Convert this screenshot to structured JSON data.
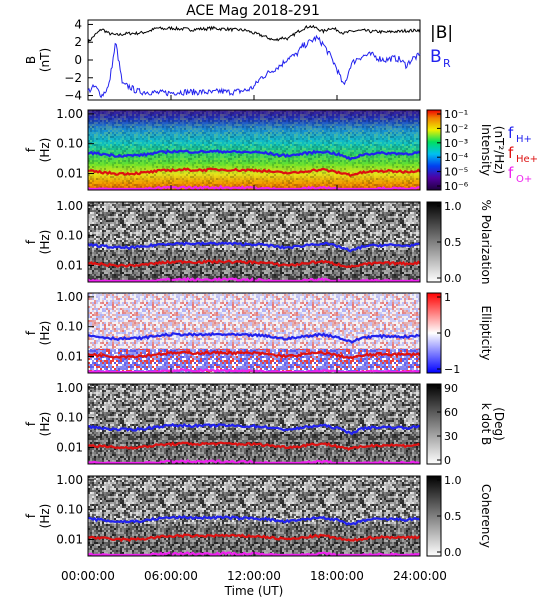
{
  "title": "ACE Mag 2018-291",
  "x_axis": {
    "label": "Time (UT)",
    "ticks": [
      "00:00:00",
      "06:00:00",
      "12:00:00",
      "18:00:00",
      "24:00:00"
    ],
    "range_hours": [
      0,
      24
    ]
  },
  "freq_ticks": [
    "1.00",
    "0.10",
    "0.01"
  ],
  "line_legend": [
    {
      "label": "f",
      "sub": "H+",
      "color": "#2222ee"
    },
    {
      "label": "f",
      "sub": "He+",
      "color": "#dd1111"
    },
    {
      "label": "f",
      "sub": "O+",
      "color": "#ee22ee"
    }
  ],
  "chart_data": [
    {
      "type": "line",
      "ylabel": [
        "B",
        "(nT)"
      ],
      "ylim": [
        -4.5,
        4.5
      ],
      "yticks": [
        -4,
        -2,
        0,
        2,
        4
      ],
      "legend": [
        {
          "text": "|B|",
          "color": "#000000"
        },
        {
          "text": "B",
          "sub": "R",
          "color": "#2222ee"
        }
      ],
      "series": [
        {
          "name": "|B|",
          "color": "#000000",
          "x": [
            0,
            0.5,
            1,
            1.5,
            2,
            2.5,
            3,
            3.5,
            4,
            4.5,
            5,
            5.5,
            6,
            6.5,
            7,
            7.5,
            8,
            8.5,
            9,
            9.5,
            10,
            10.5,
            11,
            11.5,
            12,
            12.5,
            13,
            13.5,
            14,
            14.5,
            15,
            15.5,
            16,
            16.5,
            17,
            17.5,
            18,
            18.5,
            19,
            19.5,
            20,
            20.5,
            21,
            21.5,
            22,
            22.5,
            23,
            23.5,
            24
          ],
          "y": [
            2.0,
            2.8,
            3.5,
            3.0,
            2.8,
            2.9,
            3.0,
            3.0,
            3.1,
            3.3,
            3.6,
            3.5,
            3.6,
            3.5,
            3.5,
            3.4,
            3.5,
            3.5,
            3.6,
            3.5,
            3.5,
            3.4,
            3.4,
            3.3,
            3.0,
            2.8,
            2.5,
            2.2,
            2.5,
            2.4,
            3.0,
            3.5,
            3.8,
            3.6,
            3.2,
            3.6,
            3.4,
            3.0,
            3.2,
            3.3,
            3.3,
            3.2,
            3.2,
            3.1,
            3.2,
            3.2,
            3.3,
            3.3,
            3.4
          ]
        },
        {
          "name": "B_R",
          "color": "#2222ee",
          "x": [
            0,
            0.5,
            1,
            1.5,
            2,
            2.5,
            3,
            3.5,
            4,
            4.5,
            5,
            5.5,
            6,
            6.5,
            7,
            7.5,
            8,
            8.5,
            9,
            9.5,
            10,
            10.5,
            11,
            11.5,
            12,
            12.5,
            13,
            13.5,
            14,
            14.5,
            15,
            15.5,
            16,
            16.5,
            17,
            17.5,
            18,
            18.5,
            19,
            19.5,
            20,
            20.5,
            21,
            21.5,
            22,
            22.5,
            23,
            23.5,
            24
          ],
          "y": [
            -3.5,
            -3.0,
            -4.0,
            -3.0,
            2.0,
            -2.8,
            -3.0,
            -3.5,
            -3.6,
            -3.6,
            -3.7,
            -3.7,
            -3.7,
            -3.6,
            -3.6,
            -3.6,
            -3.6,
            -3.6,
            -3.7,
            -3.5,
            -3.6,
            -3.6,
            -3.5,
            -3.4,
            -3.0,
            -2.0,
            -1.5,
            -1.0,
            -0.5,
            0.3,
            0.5,
            1.5,
            2.0,
            2.5,
            1.8,
            0.5,
            -1.0,
            -3.0,
            -0.5,
            0.2,
            0.5,
            0.6,
            0.2,
            0.0,
            0.2,
            0.1,
            -0.6,
            0.2,
            0.5
          ]
        }
      ]
    },
    {
      "type": "heatmap",
      "ylabel": [
        "f",
        "(Hz)"
      ],
      "colorbar": {
        "title_lines": [
          "Intensity",
          "(nT²/Hz)"
        ],
        "ticks": [
          "10⁻¹",
          "10⁻²",
          "10⁻³",
          "10⁻⁴",
          "10⁻⁵",
          "10⁻⁶"
        ]
      }
    },
    {
      "type": "heatmap",
      "ylabel": [
        "f",
        "(Hz)"
      ],
      "colorbar": {
        "title_lines": [
          "% Polarization"
        ],
        "ticks": [
          "1.0",
          "0.5",
          "0.0"
        ]
      }
    },
    {
      "type": "heatmap",
      "ylabel": [
        "f",
        "(Hz)"
      ],
      "colorbar": {
        "title_lines": [
          "Ellipticity"
        ],
        "ticks": [
          "1",
          "0",
          "−1"
        ]
      }
    },
    {
      "type": "heatmap",
      "ylabel": [
        "f",
        "(Hz)"
      ],
      "colorbar": {
        "title_lines": [
          "k dot B",
          "(Deg)"
        ],
        "ticks": [
          "90",
          "60",
          "30",
          "0"
        ]
      }
    },
    {
      "type": "heatmap",
      "ylabel": [
        "f",
        "(Hz)"
      ],
      "colorbar": {
        "title_lines": [
          "Coherency"
        ],
        "ticks": [
          "1.0",
          "0.5",
          "0.0"
        ]
      }
    }
  ],
  "gyrofrequency_lines": {
    "x": [
      0,
      1,
      2,
      3,
      4,
      5,
      6,
      7,
      8,
      9,
      10,
      11,
      12,
      13,
      14,
      15,
      16,
      17,
      18,
      19,
      20,
      21,
      22,
      23,
      24
    ],
    "fH": [
      0.05,
      0.045,
      0.04,
      0.04,
      0.042,
      0.05,
      0.055,
      0.055,
      0.053,
      0.055,
      0.055,
      0.052,
      0.052,
      0.048,
      0.04,
      0.042,
      0.05,
      0.055,
      0.045,
      0.03,
      0.045,
      0.048,
      0.048,
      0.046,
      0.05
    ],
    "fHe": [
      0.012,
      0.011,
      0.01,
      0.01,
      0.0105,
      0.012,
      0.013,
      0.0135,
      0.013,
      0.0135,
      0.0135,
      0.013,
      0.013,
      0.012,
      0.0105,
      0.0105,
      0.0125,
      0.0135,
      0.011,
      0.009,
      0.011,
      0.012,
      0.012,
      0.0115,
      0.0125
    ],
    "fO": [
      0.0032,
      0.003,
      0.0028,
      0.0028,
      0.0029,
      0.0032,
      0.0034,
      0.0034,
      0.0033,
      0.0034,
      0.0034,
      0.0033,
      0.0033,
      0.0031,
      0.0029,
      0.0029,
      0.0032,
      0.0034,
      0.003,
      0.0027,
      0.003,
      0.0031,
      0.0031,
      0.003,
      0.0032
    ]
  }
}
